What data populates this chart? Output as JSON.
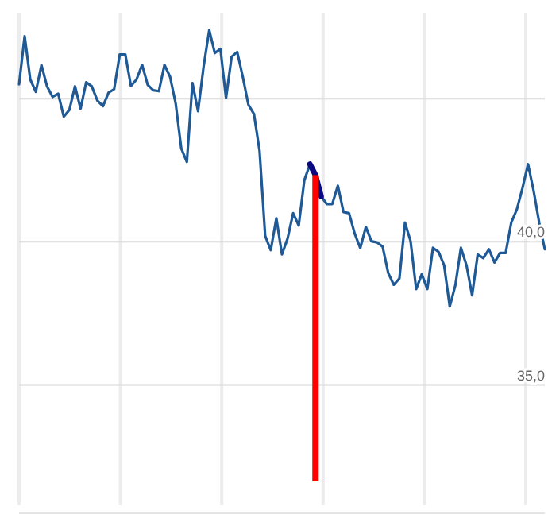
{
  "chart_data": {
    "type": "line",
    "categories": [
      null,
      null,
      null,
      null,
      null,
      null,
      null,
      null,
      null,
      null,
      null,
      null,
      null,
      null,
      null,
      null,
      null,
      null,
      null,
      null,
      null,
      null,
      null,
      null,
      null,
      null,
      null,
      null,
      null,
      null,
      null,
      null,
      null,
      null,
      null,
      null,
      null,
      null,
      null,
      null,
      null,
      null,
      null,
      null,
      null,
      null,
      null,
      null,
      null,
      null,
      null,
      null,
      null,
      null,
      null,
      null,
      null,
      null,
      null,
      null,
      null,
      null,
      null,
      null,
      null,
      null,
      null,
      null,
      null,
      null,
      null,
      null,
      null,
      null,
      null,
      null,
      null,
      null,
      null,
      null,
      null,
      null,
      null,
      null,
      null,
      null,
      null,
      null,
      null,
      null,
      null,
      null,
      null,
      null,
      null
    ],
    "ylim": [
      30.8,
      48
    ],
    "yticks": [
      {
        "value": 45,
        "label": null
      },
      {
        "value": 40,
        "label": "40,0"
      },
      {
        "value": 35,
        "label": "35,0"
      }
    ],
    "grid": true,
    "tick_labels": "y",
    "series": [
      {
        "color": "#1f5a96",
        "values": [
          45.5,
          47.18,
          45.67,
          45.24,
          46.17,
          45.43,
          45.06,
          45.17,
          44.37,
          44.61,
          45.43,
          44.65,
          45.57,
          45.43,
          44.93,
          44.74,
          45.21,
          45.33,
          46.54,
          46.54,
          45.44,
          45.67,
          46.18,
          45.48,
          45.29,
          45.26,
          46.18,
          45.76,
          44.83,
          43.26,
          42.79,
          45.54,
          44.56,
          46.13,
          47.39,
          46.59,
          46.74,
          45.02,
          46.46,
          46.63,
          45.76,
          44.79,
          44.46,
          43.17,
          40.21,
          39.71,
          40.82,
          39.56,
          40.11,
          41.0,
          40.57,
          42.15,
          42.71,
          42.33,
          41.59,
          41.32,
          41.32,
          41.96,
          41.04,
          41.0,
          40.29,
          39.78,
          40.52,
          40.02,
          39.98,
          39.83,
          38.91,
          38.5,
          38.72,
          40.67,
          40.02,
          38.35,
          38.87,
          38.35,
          39.79,
          39.65,
          39.18,
          37.74,
          38.48,
          39.79,
          39.18,
          38.13,
          39.56,
          39.43,
          39.74,
          39.28,
          39.61,
          39.61,
          40.67,
          41.13,
          41.87,
          42.71,
          41.78,
          40.67,
          39.74
        ]
      },
      {
        "color": "#0a0a80",
        "values": [
          null,
          null,
          null,
          null,
          null,
          null,
          null,
          null,
          null,
          null,
          null,
          null,
          null,
          null,
          null,
          null,
          null,
          null,
          null,
          null,
          null,
          null,
          null,
          null,
          null,
          null,
          null,
          null,
          null,
          null,
          null,
          null,
          null,
          null,
          null,
          null,
          null,
          null,
          null,
          null,
          null,
          null,
          null,
          null,
          null,
          null,
          null,
          null,
          null,
          null,
          null,
          null,
          42.71,
          42.33,
          41.59,
          null,
          null,
          null,
          null,
          null,
          null,
          null,
          null,
          null,
          null,
          null,
          null,
          null,
          null,
          null,
          null,
          null,
          null,
          null,
          null,
          null,
          null,
          null,
          null,
          null,
          null,
          null,
          null,
          null,
          null,
          null,
          null,
          null,
          null,
          null,
          null,
          null,
          null,
          null,
          null
        ]
      }
    ]
  }
}
